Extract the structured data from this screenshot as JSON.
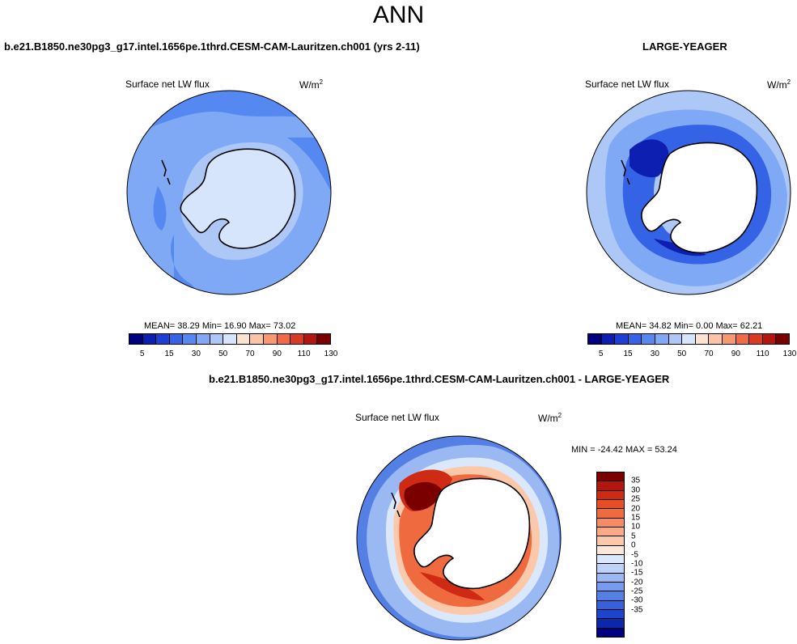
{
  "page": {
    "title": "ANN"
  },
  "panels": {
    "model": {
      "case_title": "b.e21.B1850.ne30pg3_g17.intel.1656pe.1thrd.CESM-CAM-Lauritzen.ch001 (yrs 2-11)",
      "variable": "Surface net LW flux",
      "units": "W/m",
      "units_sup": "2",
      "stats": "MEAN=  38.29  Min=  16.90  Max=  73.02"
    },
    "obs": {
      "case_title": "LARGE-YEAGER",
      "variable": "Surface net LW flux",
      "units": "W/m",
      "units_sup": "2",
      "stats": "MEAN=  34.82  Min=   0.00  Max=  62.21"
    },
    "diff": {
      "case_title": "b.e21.B1850.ne30pg3_g17.intel.1656pe.1thrd.CESM-CAM-Lauritzen.ch001 - LARGE-YEAGER",
      "variable": "Surface net LW flux",
      "units": "W/m",
      "units_sup": "2",
      "stats": "MIN = -24.42 MAX =  53.24"
    }
  },
  "colorbars": {
    "field": {
      "colors": [
        "#00007f",
        "#0d1fb0",
        "#1d3fd4",
        "#3563e6",
        "#5588f0",
        "#80a9f5",
        "#adc8f7",
        "#d6e5fb",
        "#fbe3d2",
        "#fcc3a5",
        "#f7986f",
        "#ef6a45",
        "#d93a22",
        "#b3160f",
        "#7a0000"
      ],
      "labels": [
        "5",
        "15",
        "30",
        "50",
        "70",
        "90",
        "110",
        "130"
      ]
    },
    "diff": {
      "colors": [
        "#7a0000",
        "#b3160f",
        "#cf2a14",
        "#e54d26",
        "#f06a40",
        "#f78b61",
        "#f9ab86",
        "#fbc9aa",
        "#fce8d8",
        "#dbe8fb",
        "#bcd2f7",
        "#9ab9f2",
        "#789ced",
        "#5480e6",
        "#3562db",
        "#1d44cc",
        "#0d27aa",
        "#00007f"
      ],
      "labels": [
        "35",
        "30",
        "25",
        "20",
        "15",
        "10",
        "5",
        "0",
        "-5",
        "-10",
        "-15",
        "-20",
        "-25",
        "-30",
        "-35"
      ]
    }
  },
  "map_colors": {
    "land": "#ffffff",
    "coast": "#000000",
    "model_ocean": "#80a9f5",
    "model_ocean_dark": "#5588f0",
    "model_shelf": "#adc8f7",
    "model_land": "#d6e5fb",
    "obs_ocean": "#adc8f7",
    "obs_band": "#80a9f5",
    "obs_ring": "#3563e6",
    "obs_deep": "#0d1fb0",
    "diff_ocean": "#5480e6",
    "diff_ocean_light": "#9ab9f2",
    "diff_pale": "#dbe8fb",
    "diff_warm1": "#fbc9aa",
    "diff_warm2": "#f06a40",
    "diff_warm3": "#cf2a14",
    "diff_hot": "#7a0000"
  }
}
